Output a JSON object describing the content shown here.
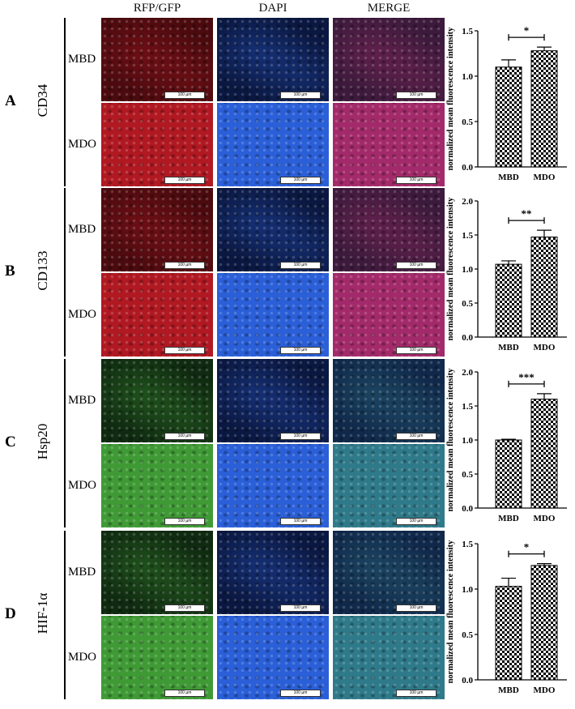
{
  "headers": [
    "RFP/GFP",
    "DAPI",
    "MERGE"
  ],
  "scale_bar_label": "100 µm",
  "panels": [
    {
      "letter": "A",
      "marker": "CD34",
      "rows": [
        "MBD",
        "MDO"
      ]
    },
    {
      "letter": "B",
      "marker": "CD133",
      "rows": [
        "MBD",
        "MDO"
      ]
    },
    {
      "letter": "C",
      "marker": "Hsp20",
      "rows": [
        "MBD",
        "MDO"
      ]
    },
    {
      "letter": "D",
      "marker": "HIF-1α",
      "rows": [
        "MBD",
        "MDO"
      ]
    }
  ],
  "colors": {
    "red_dim": "#4a0a0e",
    "red_bright": "#b01822",
    "blue_dim": "#0a1740",
    "blue_bright": "#2a5fd8",
    "green_dim": "#0f2a10",
    "green_bright": "#3f9a35",
    "merge_red_dim": "#3c1a3c",
    "merge_red_bright": "#a32a6a",
    "merge_green_dim": "#10284a",
    "merge_green_bright": "#2f7a8a"
  },
  "chart_data": [
    {
      "type": "bar",
      "panel": "A",
      "categories": [
        "MBD",
        "MDO"
      ],
      "values": [
        1.1,
        1.28
      ],
      "errors": [
        0.08,
        0.04
      ],
      "ylabel": "normalized mean fluorescence intensity",
      "ylim": [
        0,
        1.5
      ],
      "yticks": [
        "0.0",
        "0.5",
        "1.0",
        "1.5"
      ],
      "significance": "*"
    },
    {
      "type": "bar",
      "panel": "B",
      "categories": [
        "MBD",
        "MDO"
      ],
      "values": [
        1.07,
        1.47
      ],
      "errors": [
        0.05,
        0.1
      ],
      "ylabel": "normalized mean fluorescence intensity",
      "ylim": [
        0,
        2.0
      ],
      "yticks": [
        "0.0",
        "0.5",
        "1.0",
        "1.5",
        "2.0"
      ],
      "significance": "**"
    },
    {
      "type": "bar",
      "panel": "C",
      "categories": [
        "MBD",
        "MDO"
      ],
      "values": [
        1.0,
        1.6
      ],
      "errors": [
        0.01,
        0.08
      ],
      "ylabel": "normalized mean fluorescence intensity",
      "ylim": [
        0,
        2.0
      ],
      "yticks": [
        "0.0",
        "0.5",
        "1.0",
        "1.5",
        "2.0"
      ],
      "significance": "***"
    },
    {
      "type": "bar",
      "panel": "D",
      "categories": [
        "MBD",
        "MDO"
      ],
      "values": [
        1.03,
        1.26
      ],
      "errors": [
        0.09,
        0.02
      ],
      "ylabel": "normalized mean fluorescence intensity",
      "ylim": [
        0,
        1.5
      ],
      "yticks": [
        "0.0",
        "0.5",
        "1.0",
        "1.5"
      ],
      "significance": "*"
    }
  ]
}
